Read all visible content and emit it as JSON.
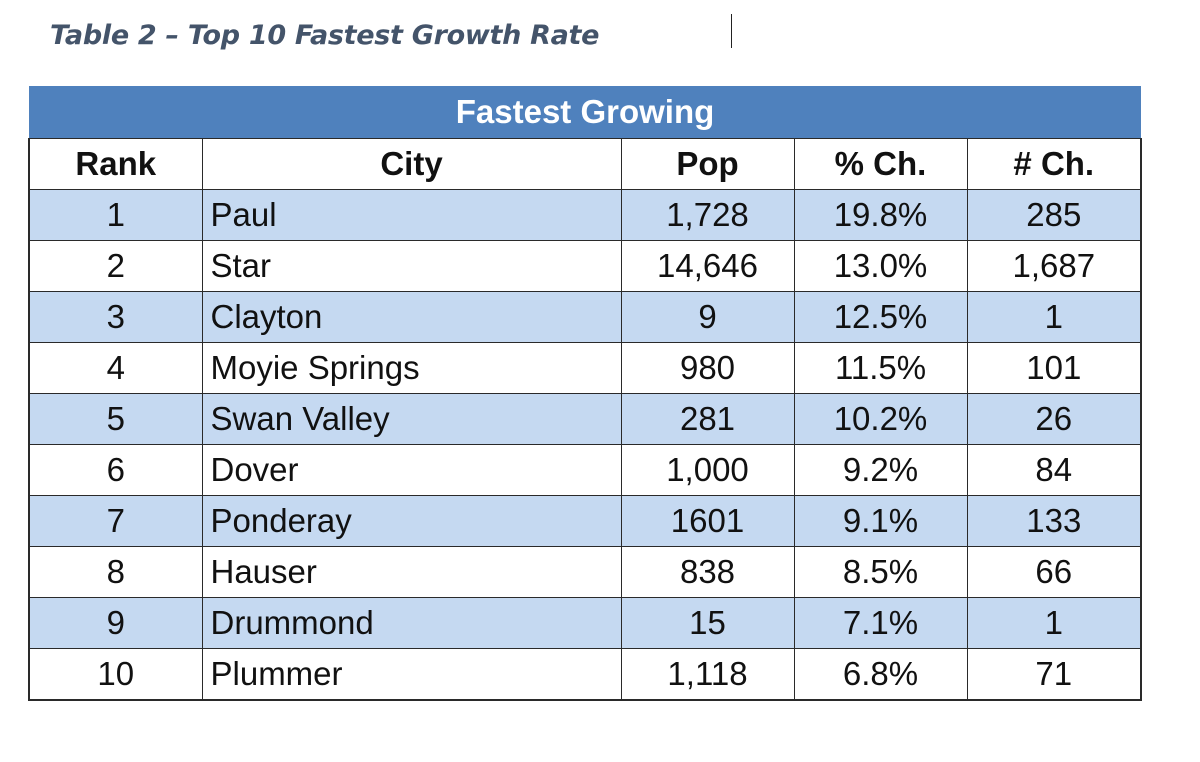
{
  "caption": "Table 2 – Top 10 Fastest Growth Rate",
  "table": {
    "banner": "Fastest Growing",
    "headers": {
      "rank": "Rank",
      "city": "City",
      "pop": "Pop",
      "pct_change": "% Ch.",
      "num_change": "# Ch."
    },
    "rows": [
      {
        "rank": "1",
        "city": "Paul",
        "pop": "1,728",
        "pct_change": "19.8%",
        "num_change": "285"
      },
      {
        "rank": "2",
        "city": "Star",
        "pop": "14,646",
        "pct_change": "13.0%",
        "num_change": "1,687"
      },
      {
        "rank": "3",
        "city": "Clayton",
        "pop": "9",
        "pct_change": "12.5%",
        "num_change": "1"
      },
      {
        "rank": "4",
        "city": "Moyie Springs",
        "pop": "980",
        "pct_change": "11.5%",
        "num_change": "101"
      },
      {
        "rank": "5",
        "city": "Swan Valley",
        "pop": "281",
        "pct_change": "10.2%",
        "num_change": "26"
      },
      {
        "rank": "6",
        "city": "Dover",
        "pop": "1,000",
        "pct_change": "9.2%",
        "num_change": "84"
      },
      {
        "rank": "7",
        "city": "Ponderay",
        "pop": "1601",
        "pct_change": "9.1%",
        "num_change": "133"
      },
      {
        "rank": "8",
        "city": "Hauser",
        "pop": "838",
        "pct_change": "8.5%",
        "num_change": "66"
      },
      {
        "rank": "9",
        "city": "Drummond",
        "pop": "15",
        "pct_change": "7.1%",
        "num_change": "1"
      },
      {
        "rank": "10",
        "city": "Plummer",
        "pop": "1,118",
        "pct_change": "6.8%",
        "num_change": "71"
      }
    ]
  },
  "colors": {
    "banner": "#4f81bd",
    "stripe": "#c5d9f1",
    "caption": "#44546a"
  }
}
